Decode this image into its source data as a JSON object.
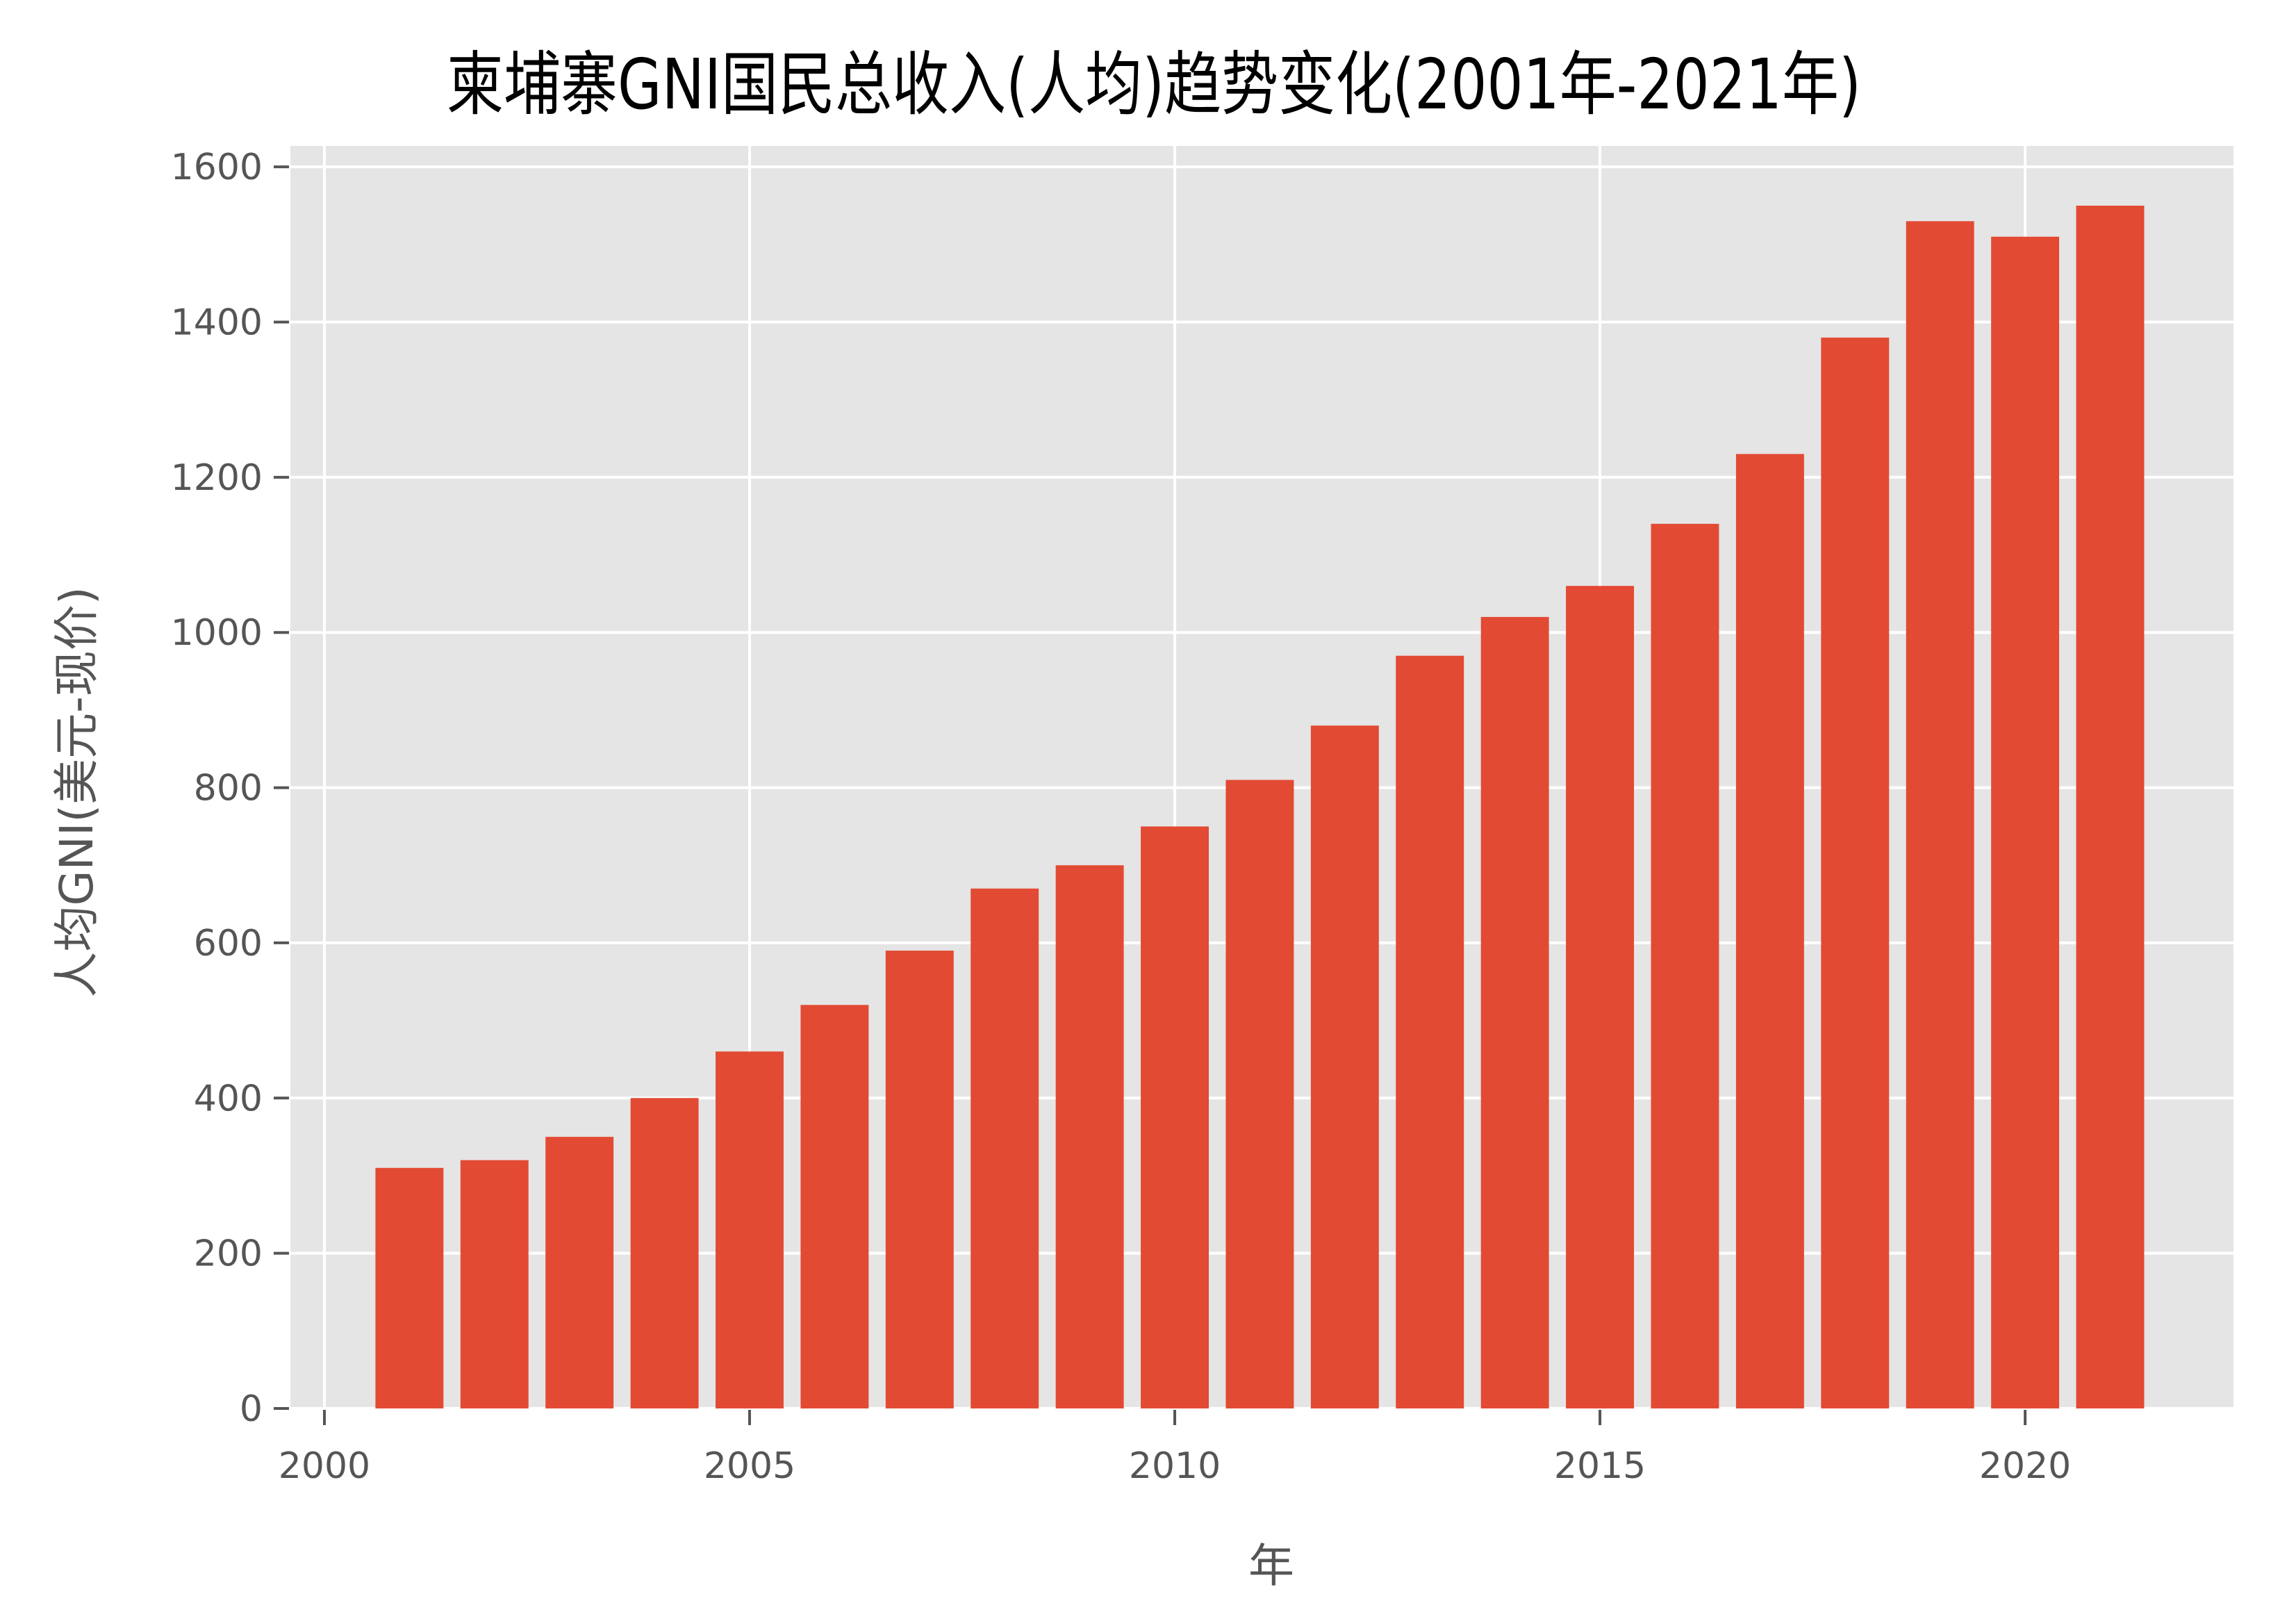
{
  "chart_data": {
    "type": "bar",
    "title": "柬埔寨GNI国民总收入(人均)趋势变化(2001年-2021年)",
    "xlabel": "年",
    "ylabel": "人均GNI(美元-现价)",
    "categories": [
      2001,
      2002,
      2003,
      2004,
      2005,
      2006,
      2007,
      2008,
      2009,
      2010,
      2011,
      2012,
      2013,
      2014,
      2015,
      2016,
      2017,
      2018,
      2019,
      2020,
      2021
    ],
    "values": [
      310,
      320,
      350,
      400,
      460,
      520,
      590,
      670,
      700,
      750,
      810,
      880,
      970,
      1020,
      1060,
      1140,
      1230,
      1380,
      1530,
      1510,
      1550
    ],
    "series": [
      {
        "name": "人均GNI",
        "values": [
          310,
          320,
          350,
          400,
          460,
          520,
          590,
          670,
          700,
          750,
          810,
          880,
          970,
          1020,
          1060,
          1140,
          1230,
          1380,
          1530,
          1510,
          1550
        ]
      }
    ],
    "xticks": [
      "2000",
      "2005",
      "2010",
      "2015",
      "2020"
    ],
    "yticks": [
      "0",
      "200",
      "400",
      "600",
      "800",
      "1000",
      "1200",
      "1400",
      "1600"
    ],
    "xlim": [
      1999.6,
      2022.45
    ],
    "ylim": [
      0,
      1627
    ],
    "grid": true,
    "legend": null,
    "colors": {
      "bar": "#E24A33",
      "plot_background": "#E5E5E5",
      "grid": "#FFFFFF",
      "tick_text": "#555555",
      "title": "#000000"
    }
  }
}
